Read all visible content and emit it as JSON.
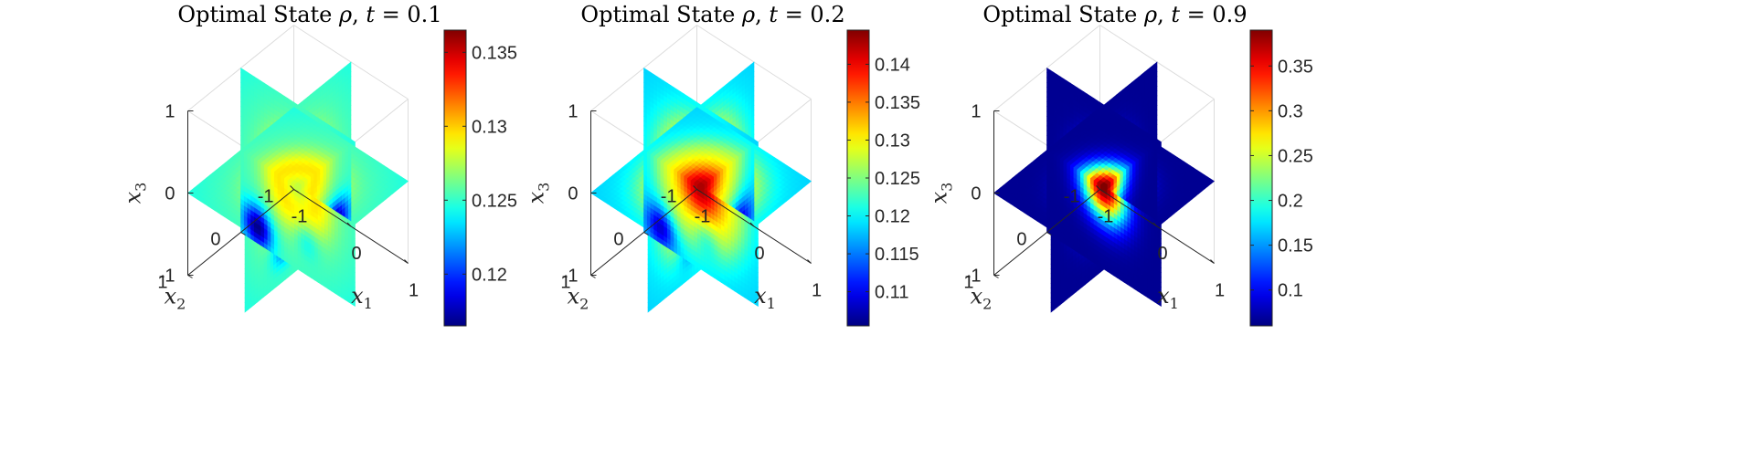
{
  "chart_data": [
    {
      "type": "heatmap",
      "title": "Optimal State ρ, t = 0.1",
      "title_parts": {
        "prefix": "Optimal State ",
        "symbol": "ρ",
        "mid": ", ",
        "tvar": "t",
        "eq": " = ",
        "tval": "0.1"
      },
      "xlabel": "x",
      "xlabel_sub": "1",
      "ylabel": "x",
      "ylabel_sub": "2",
      "zlabel": "x",
      "zlabel_sub": "3",
      "x_ticks": [
        "-1",
        "0",
        "1"
      ],
      "y_ticks": [
        "-1",
        "0",
        "1"
      ],
      "z_ticks": [
        "-1",
        "0",
        "1"
      ],
      "colorbar": {
        "min": 0.1165,
        "max": 0.1365,
        "ticks": [
          0.12,
          0.125,
          0.13,
          0.135
        ],
        "tick_labels": [
          "0.12",
          "0.125",
          "0.13",
          "0.135"
        ],
        "colormap": "jet"
      },
      "field": {
        "base": 0.1265,
        "center_peak": 0.1295,
        "corner_dip": 0.117,
        "slice_planes": [
          "x1=0",
          "x2=0",
          "x3=0"
        ]
      }
    },
    {
      "type": "heatmap",
      "title": "Optimal State ρ, t = 0.2",
      "title_parts": {
        "prefix": "Optimal State ",
        "symbol": "ρ",
        "mid": ", ",
        "tvar": "t",
        "eq": " = ",
        "tval": "0.2"
      },
      "xlabel": "x",
      "xlabel_sub": "1",
      "ylabel": "x",
      "ylabel_sub": "2",
      "zlabel": "x",
      "zlabel_sub": "3",
      "x_ticks": [
        "-1",
        "0",
        "1"
      ],
      "y_ticks": [
        "-1",
        "0",
        "1"
      ],
      "z_ticks": [
        "-1",
        "0",
        "1"
      ],
      "colorbar": {
        "min": 0.1055,
        "max": 0.1445,
        "ticks": [
          0.11,
          0.115,
          0.12,
          0.125,
          0.13,
          0.135,
          0.14
        ],
        "tick_labels": [
          "0.11",
          "0.115",
          "0.12",
          "0.125",
          "0.13",
          "0.135",
          "0.14"
        ],
        "colormap": "jet"
      },
      "field": {
        "base": 0.122,
        "center_peak": 0.1445,
        "corner_dip": 0.108,
        "slice_planes": [
          "x1=0",
          "x2=0",
          "x3=0"
        ]
      }
    },
    {
      "type": "heatmap",
      "title": "Optimal State ρ, t = 0.9",
      "title_parts": {
        "prefix": "Optimal State ",
        "symbol": "ρ",
        "mid": ", ",
        "tvar": "t",
        "eq": " = ",
        "tval": "0.9"
      },
      "xlabel": "x",
      "xlabel_sub": "1",
      "ylabel": "x",
      "ylabel_sub": "2",
      "zlabel": "x",
      "zlabel_sub": "3",
      "x_ticks": [
        "-1",
        "0",
        "1"
      ],
      "y_ticks": [
        "-1",
        "0",
        "1"
      ],
      "z_ticks": [
        "-1",
        "0",
        "1"
      ],
      "colorbar": {
        "min": 0.06,
        "max": 0.39,
        "ticks": [
          0.1,
          0.15,
          0.2,
          0.25,
          0.3,
          0.35
        ],
        "tick_labels": [
          "0.1",
          "0.15",
          "0.2",
          "0.25",
          "0.3",
          "0.35"
        ],
        "colormap": "jet"
      },
      "field": {
        "base": 0.065,
        "center_peak": 0.39,
        "corner_dip": 0.062,
        "slice_planes": [
          "x1=0",
          "x2=0",
          "x3=0"
        ]
      }
    }
  ]
}
